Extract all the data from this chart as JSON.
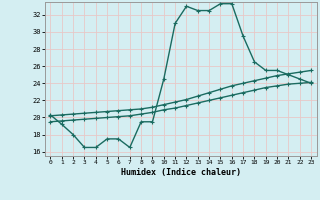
{
  "xlabel": "Humidex (Indice chaleur)",
  "bg_color": "#d4eef2",
  "grid_color": "#c8dfe5",
  "line_color": "#1a6b60",
  "xlim": [
    -0.5,
    23.5
  ],
  "ylim": [
    15.5,
    33.5
  ],
  "xticks": [
    0,
    1,
    2,
    3,
    4,
    5,
    6,
    7,
    8,
    9,
    10,
    11,
    12,
    13,
    14,
    15,
    16,
    17,
    18,
    19,
    20,
    21,
    22,
    23
  ],
  "yticks": [
    16,
    18,
    20,
    22,
    24,
    26,
    28,
    30,
    32
  ],
  "line1_x": [
    0,
    1,
    2,
    3,
    4,
    5,
    6,
    7,
    8,
    9,
    10,
    11,
    12,
    13,
    14,
    15,
    16,
    17,
    18,
    19,
    20,
    21,
    22,
    23
  ],
  "line1_y": [
    20.3,
    19.2,
    18.0,
    16.5,
    16.5,
    17.5,
    17.5,
    16.5,
    19.5,
    19.5,
    24.5,
    31.0,
    33.0,
    32.5,
    32.5,
    33.3,
    33.3,
    29.5,
    26.5,
    25.5,
    25.5,
    25.0,
    24.5,
    24.0
  ],
  "line2_x": [
    0,
    1,
    2,
    3,
    4,
    5,
    6,
    7,
    8,
    9,
    10,
    11,
    12,
    13,
    14,
    15,
    16,
    17,
    18,
    19,
    20,
    21,
    22,
    23
  ],
  "line2_y": [
    20.2,
    20.3,
    20.4,
    20.5,
    20.6,
    20.7,
    20.8,
    20.9,
    21.0,
    21.2,
    21.5,
    21.8,
    22.1,
    22.5,
    22.9,
    23.3,
    23.7,
    24.0,
    24.3,
    24.6,
    24.9,
    25.1,
    25.3,
    25.5
  ],
  "line3_x": [
    0,
    1,
    2,
    3,
    4,
    5,
    6,
    7,
    8,
    9,
    10,
    11,
    12,
    13,
    14,
    15,
    16,
    17,
    18,
    19,
    20,
    21,
    22,
    23
  ],
  "line3_y": [
    19.5,
    19.6,
    19.7,
    19.8,
    19.9,
    20.0,
    20.1,
    20.2,
    20.4,
    20.6,
    20.9,
    21.1,
    21.4,
    21.7,
    22.0,
    22.3,
    22.6,
    22.9,
    23.2,
    23.5,
    23.7,
    23.9,
    24.0,
    24.1
  ],
  "marker_size": 2.5,
  "line_width": 1.0
}
